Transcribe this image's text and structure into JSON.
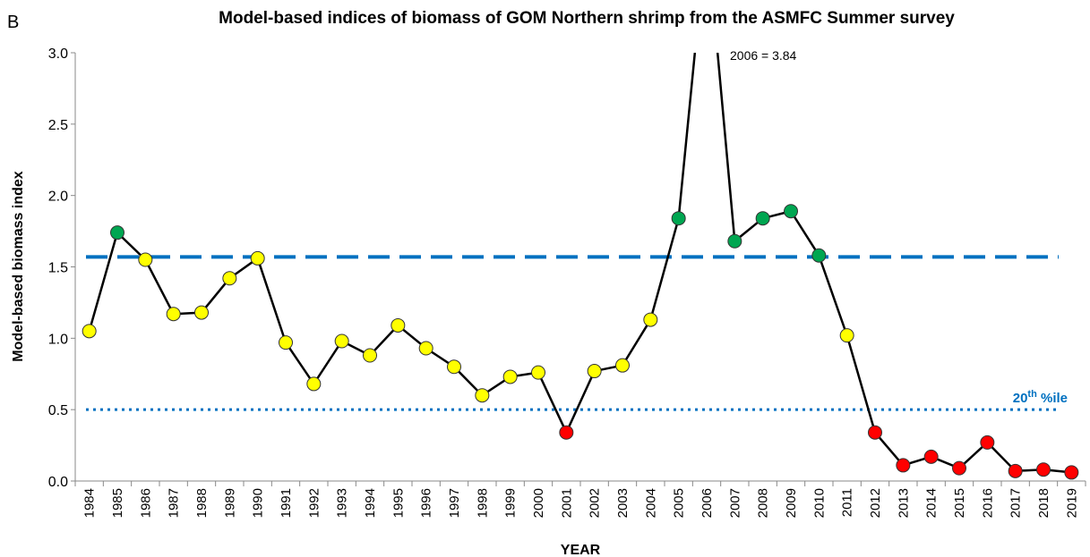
{
  "chart_data": {
    "type": "line",
    "panel_label": "B",
    "title": "Model-based indices of biomass of GOM Northern shrimp from the ASMFC Summer survey",
    "x_label": "YEAR",
    "y_label": "Model-based biomass index",
    "annotation": "2006 = 3.84",
    "categories": [
      "1984",
      "1985",
      "1986",
      "1987",
      "1988",
      "1989",
      "1990",
      "1991",
      "1992",
      "1993",
      "1994",
      "1995",
      "1996",
      "1997",
      "1998",
      "1999",
      "2000",
      "2001",
      "2002",
      "2003",
      "2004",
      "2005",
      "2006",
      "2007",
      "2008",
      "2009",
      "2010",
      "2011",
      "2012",
      "2013",
      "2014",
      "2015",
      "2016",
      "2017",
      "2018",
      "2019"
    ],
    "values": [
      1.05,
      1.74,
      1.55,
      1.17,
      1.18,
      1.42,
      1.56,
      0.97,
      0.68,
      0.98,
      0.88,
      1.09,
      0.93,
      0.8,
      0.6,
      0.73,
      0.76,
      0.34,
      0.77,
      0.81,
      1.13,
      1.84,
      3.84,
      1.68,
      1.84,
      1.89,
      1.58,
      1.02,
      0.34,
      0.11,
      0.17,
      0.09,
      0.27,
      0.07,
      0.08,
      0.06
    ],
    "point_colors": [
      "#ffff00",
      "#00a651",
      "#ffff00",
      "#ffff00",
      "#ffff00",
      "#ffff00",
      "#ffff00",
      "#ffff00",
      "#ffff00",
      "#ffff00",
      "#ffff00",
      "#ffff00",
      "#ffff00",
      "#ffff00",
      "#ffff00",
      "#ffff00",
      "#ffff00",
      "#ff0000",
      "#ffff00",
      "#ffff00",
      "#ffff00",
      "#00a651",
      "#00a651",
      "#00a651",
      "#00a651",
      "#00a651",
      "#00a651",
      "#ffff00",
      "#ff0000",
      "#ff0000",
      "#ff0000",
      "#ff0000",
      "#ff0000",
      "#ff0000",
      "#ff0000",
      "#ff0000"
    ],
    "line_color": "#000000",
    "ylim": [
      0,
      3
    ],
    "yticks": [
      {
        "value": 0,
        "label": "0.0"
      },
      0.5,
      {
        "value": 1,
        "label": "1.0"
      },
      1.5,
      {
        "value": 2,
        "label": "2.0"
      },
      2.5,
      {
        "value": 3,
        "label": "3.0"
      }
    ],
    "reference_lines": [
      {
        "value": 1.57,
        "style": "dashed",
        "color": "#0070c0"
      },
      {
        "value": 0.5,
        "style": "dotted",
        "color": "#0070c0",
        "label": [
          "20",
          "th",
          " %ile"
        ]
      }
    ]
  }
}
